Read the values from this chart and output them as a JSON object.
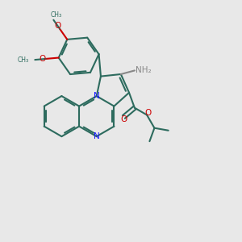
{
  "bg_color": "#e8e8e8",
  "bond_color": "#2d6b5e",
  "n_color": "#1a1aff",
  "o_color": "#cc0000",
  "nh_color": "#888888",
  "lw": 1.5,
  "xlim": [
    0,
    10
  ],
  "ylim": [
    0,
    10
  ]
}
